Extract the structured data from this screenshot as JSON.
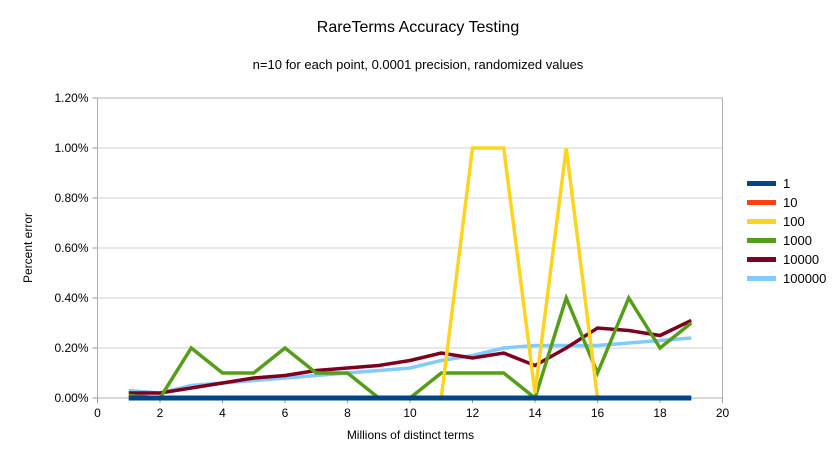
{
  "chart_data": {
    "type": "line",
    "title": "RareTerms Accuracy Testing",
    "subtitle": "n=10 for each point, 0.0001 precision, randomized values",
    "xlabel": "Millions of distinct terms",
    "ylabel": "Percent error",
    "xlim": [
      0,
      20
    ],
    "ylim_percent": [
      0,
      1.2
    ],
    "grid": "horizontal",
    "legend_position": "right",
    "x": [
      1,
      2,
      3,
      4,
      5,
      6,
      7,
      8,
      9,
      10,
      11,
      12,
      13,
      14,
      15,
      16,
      17,
      18,
      19
    ],
    "series": [
      {
        "name": "1",
        "color": "#004586",
        "values": [
          0,
          0,
          0,
          0,
          0,
          0,
          0,
          0,
          0,
          0,
          0,
          0,
          0,
          0,
          0,
          0,
          0,
          0,
          0
        ]
      },
      {
        "name": "10",
        "color": "#ff420e",
        "values": [
          0,
          0,
          0,
          0,
          0,
          0,
          0,
          0,
          0,
          0,
          0,
          0,
          0,
          0,
          0,
          0,
          0,
          0,
          0
        ]
      },
      {
        "name": "100",
        "color": "#ffd320",
        "values": [
          0,
          0,
          0,
          0,
          0,
          0,
          0,
          0,
          0,
          0,
          0,
          1.0,
          1.0,
          0.02,
          1.0,
          0,
          0,
          0,
          0
        ]
      },
      {
        "name": "1000",
        "color": "#579d1c",
        "values": [
          0.01,
          0.0,
          0.2,
          0.1,
          0.1,
          0.2,
          0.1,
          0.1,
          0.0,
          0.0,
          0.1,
          0.1,
          0.1,
          0.0,
          0.4,
          0.1,
          0.4,
          0.2,
          0.3
        ]
      },
      {
        "name": "10000",
        "color": "#7e0021",
        "values": [
          0.02,
          0.02,
          0.04,
          0.06,
          0.08,
          0.09,
          0.11,
          0.12,
          0.13,
          0.15,
          0.18,
          0.16,
          0.18,
          0.13,
          0.2,
          0.28,
          0.27,
          0.25,
          0.31
        ]
      },
      {
        "name": "100000",
        "color": "#83caff",
        "values": [
          0.03,
          0.02,
          0.05,
          0.06,
          0.07,
          0.08,
          0.09,
          0.1,
          0.11,
          0.12,
          0.15,
          0.17,
          0.2,
          0.21,
          0.21,
          0.21,
          0.22,
          0.23,
          0.24
        ]
      }
    ],
    "y_ticks": [
      {
        "value": 0.0,
        "label": "0.00%"
      },
      {
        "value": 0.2,
        "label": "0.20%"
      },
      {
        "value": 0.4,
        "label": "0.40%"
      },
      {
        "value": 0.6,
        "label": "0.60%"
      },
      {
        "value": 0.8,
        "label": "0.80%"
      },
      {
        "value": 1.0,
        "label": "1.00%"
      },
      {
        "value": 1.2,
        "label": "1.20%"
      }
    ],
    "x_ticks": [
      {
        "value": 0,
        "label": "0"
      },
      {
        "value": 2,
        "label": "2"
      },
      {
        "value": 4,
        "label": "4"
      },
      {
        "value": 6,
        "label": "6"
      },
      {
        "value": 8,
        "label": "8"
      },
      {
        "value": 10,
        "label": "10"
      },
      {
        "value": 12,
        "label": "12"
      },
      {
        "value": 14,
        "label": "14"
      },
      {
        "value": 16,
        "label": "16"
      },
      {
        "value": 18,
        "label": "18"
      },
      {
        "value": 20,
        "label": "20"
      }
    ]
  }
}
